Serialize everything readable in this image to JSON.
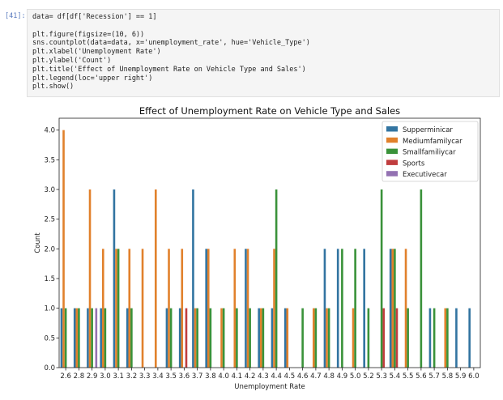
{
  "notebook": {
    "prompt": "[41]:",
    "code_lines": [
      "data= df[df['Recession'] == 1]",
      "",
      "plt.figure(figsize=(10, 6))",
      "sns.countplot(data=data, x='unemployment_rate', hue='Vehicle_Type')",
      "plt.xlabel('Unemployment Rate')",
      "plt.ylabel('Count')",
      "plt.title('Effect of Unemployment Rate on Vehicle Type and Sales')",
      "plt.legend(loc='upper right')",
      "plt.show()"
    ]
  },
  "chart_data": {
    "type": "bar",
    "title": "Effect of Unemployment Rate on Vehicle Type and Sales",
    "xlabel": "Unemployment Rate",
    "ylabel": "Count",
    "ylim": [
      0,
      4.2
    ],
    "yticks": [
      "0.0",
      "0.5",
      "1.0",
      "1.5",
      "2.0",
      "2.5",
      "3.0",
      "3.5",
      "4.0"
    ],
    "legend_position": "upper right",
    "grid": false,
    "categories": [
      "2.6",
      "2.8",
      "2.9",
      "3.0",
      "3.1",
      "3.2",
      "3.3",
      "3.4",
      "3.5",
      "3.6",
      "3.7",
      "3.8",
      "4.0",
      "4.1",
      "4.2",
      "4.3",
      "4.4",
      "4.5",
      "4.6",
      "4.7",
      "4.8",
      "4.9",
      "5.0",
      "5.2",
      "5.3",
      "5.4",
      "5.5",
      "5.6",
      "5.7",
      "5.8",
      "5.9",
      "6.0"
    ],
    "series": [
      {
        "name": "Supperminicar",
        "color": "#3274a1",
        "values": [
          1,
          1,
          1,
          1,
          3,
          1,
          0,
          0,
          1,
          1,
          3,
          2,
          0,
          0,
          2,
          1,
          1,
          1,
          0,
          0,
          2,
          2,
          0,
          2,
          0,
          2,
          0,
          0,
          1,
          0,
          1,
          1
        ]
      },
      {
        "name": "Mediumfamilycar",
        "color": "#e1812c",
        "values": [
          4,
          1,
          3,
          2,
          2,
          2,
          2,
          3,
          2,
          2,
          1,
          2,
          1,
          2,
          2,
          1,
          2,
          1,
          0,
          1,
          1,
          0,
          1,
          0,
          0,
          2,
          2,
          0,
          0,
          1,
          0,
          0
        ]
      },
      {
        "name": "Smallfamiliycar",
        "color": "#3a923a",
        "values": [
          1,
          1,
          1,
          1,
          2,
          1,
          0,
          0,
          1,
          0,
          1,
          1,
          1,
          1,
          1,
          1,
          3,
          0,
          1,
          1,
          1,
          2,
          2,
          1,
          3,
          2,
          1,
          3,
          1,
          1,
          0,
          0
        ]
      },
      {
        "name": "Sports",
        "color": "#c03d3e",
        "values": [
          0,
          0,
          0,
          0,
          0,
          0,
          0,
          0,
          0,
          1,
          0,
          0,
          0,
          0,
          0,
          0,
          0,
          0,
          0,
          0,
          0,
          0,
          0,
          0,
          1,
          1,
          0,
          0,
          0,
          0,
          0,
          0
        ]
      },
      {
        "name": "Executivecar",
        "color": "#9372b2",
        "values": [
          0,
          0,
          1,
          0,
          0,
          0,
          0,
          0,
          0,
          0,
          0,
          0,
          0,
          0,
          0,
          0,
          0,
          0,
          0,
          0,
          0,
          0,
          0,
          0,
          0,
          0,
          0,
          0,
          0,
          0,
          0,
          0
        ]
      }
    ]
  }
}
